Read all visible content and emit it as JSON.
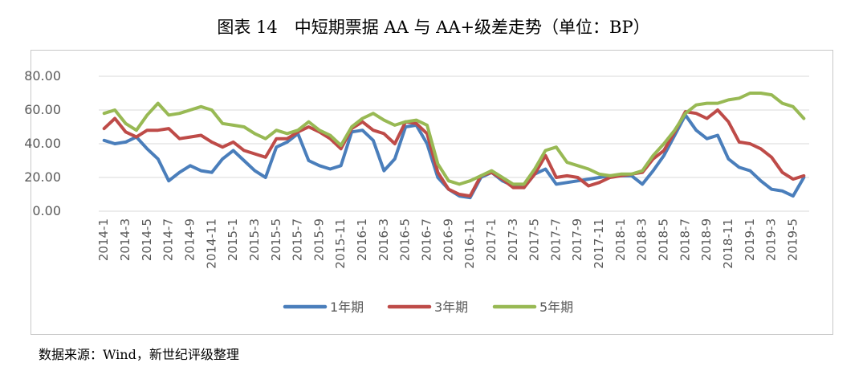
{
  "title": "图表 14　中短期票据 AA 与 AA+级差走势（单位：BP）",
  "source": "数据来源：Wind，新世纪评级整理",
  "chart_data": {
    "type": "line",
    "title": "图表 14　中短期票据 AA 与 AA+级差走势（单位：BP）",
    "xlabel": "",
    "ylabel": "",
    "ylim": [
      0,
      80
    ],
    "yticks": [
      "0.00",
      "20.00",
      "40.00",
      "60.00",
      "80.00"
    ],
    "grid": true,
    "legend_position": "bottom",
    "x": [
      "2014-1",
      "2014-2",
      "2014-3",
      "2014-4",
      "2014-5",
      "2014-6",
      "2014-7",
      "2014-8",
      "2014-9",
      "2014-10",
      "2014-11",
      "2014-12",
      "2015-1",
      "2015-2",
      "2015-3",
      "2015-4",
      "2015-5",
      "2015-6",
      "2015-7",
      "2015-8",
      "2015-9",
      "2015-10",
      "2015-11",
      "2015-12",
      "2016-1",
      "2016-2",
      "2016-3",
      "2016-4",
      "2016-5",
      "2016-6",
      "2016-7",
      "2016-8",
      "2016-9",
      "2016-10",
      "2016-11",
      "2016-12",
      "2017-1",
      "2017-2",
      "2017-3",
      "2017-4",
      "2017-5",
      "2017-6",
      "2017-7",
      "2017-8",
      "2017-9",
      "2017-10",
      "2017-11",
      "2017-12",
      "2018-1",
      "2018-2",
      "2018-3",
      "2018-4",
      "2018-5",
      "2018-6",
      "2018-7",
      "2018-8",
      "2018-9",
      "2018-10",
      "2018-11",
      "2018-12",
      "2019-1",
      "2019-2",
      "2019-3",
      "2019-4",
      "2019-5",
      "2019-6"
    ],
    "xtick_labels": [
      "2014-1",
      "2014-3",
      "2014-5",
      "2014-7",
      "2014-9",
      "2014-11",
      "2015-1",
      "2015-3",
      "2015-5",
      "2015-7",
      "2015-9",
      "2015-11",
      "2016-1",
      "2016-3",
      "2016-5",
      "2016-7",
      "2016-9",
      "2016-11",
      "2017-1",
      "2017-3",
      "2017-5",
      "2017-7",
      "2017-9",
      "2017-11",
      "2018-1",
      "2018-3",
      "2018-5",
      "2018-7",
      "2018-9",
      "2018-11",
      "2019-1",
      "2019-3",
      "2019-5"
    ],
    "series": [
      {
        "name": "1年期",
        "color": "#4a7ebb",
        "values": [
          42,
          40,
          41,
          44,
          37,
          31,
          18,
          23,
          27,
          24,
          23,
          31,
          36,
          30,
          24,
          20,
          38,
          41,
          46,
          30,
          27,
          25,
          27,
          47,
          48,
          42,
          24,
          31,
          50,
          51,
          40,
          20,
          13,
          9,
          8,
          20,
          23,
          18,
          15,
          14,
          22,
          25,
          16,
          17,
          18,
          19,
          20,
          21,
          21,
          21,
          16,
          24,
          33,
          45,
          57,
          48,
          43,
          45,
          31,
          26,
          24,
          18,
          13,
          12,
          9,
          20
        ]
      },
      {
        "name": "3年期",
        "color": "#be4b48",
        "values": [
          49,
          55,
          47,
          44,
          48,
          48,
          49,
          43,
          44,
          45,
          41,
          38,
          41,
          36,
          34,
          32,
          43,
          43,
          47,
          50,
          47,
          43,
          37,
          49,
          53,
          48,
          46,
          40,
          53,
          52,
          46,
          23,
          13,
          10,
          9,
          21,
          23,
          19,
          14,
          14,
          22,
          33,
          20,
          21,
          20,
          15,
          17,
          20,
          21,
          22,
          23,
          31,
          36,
          47,
          59,
          58,
          55,
          60,
          53,
          41,
          40,
          37,
          32,
          23,
          19,
          21
        ]
      },
      {
        "name": "5年期",
        "color": "#98b954",
        "values": [
          58,
          60,
          52,
          48,
          57,
          64,
          57,
          58,
          60,
          62,
          60,
          52,
          51,
          50,
          46,
          43,
          48,
          46,
          48,
          53,
          48,
          45,
          39,
          50,
          55,
          58,
          54,
          51,
          53,
          54,
          51,
          28,
          18,
          16,
          18,
          21,
          24,
          20,
          16,
          16,
          25,
          36,
          38,
          29,
          27,
          25,
          22,
          21,
          22,
          22,
          24,
          33,
          40,
          48,
          58,
          63,
          64,
          64,
          66,
          67,
          70,
          70,
          69,
          64,
          62,
          55
        ]
      }
    ]
  }
}
